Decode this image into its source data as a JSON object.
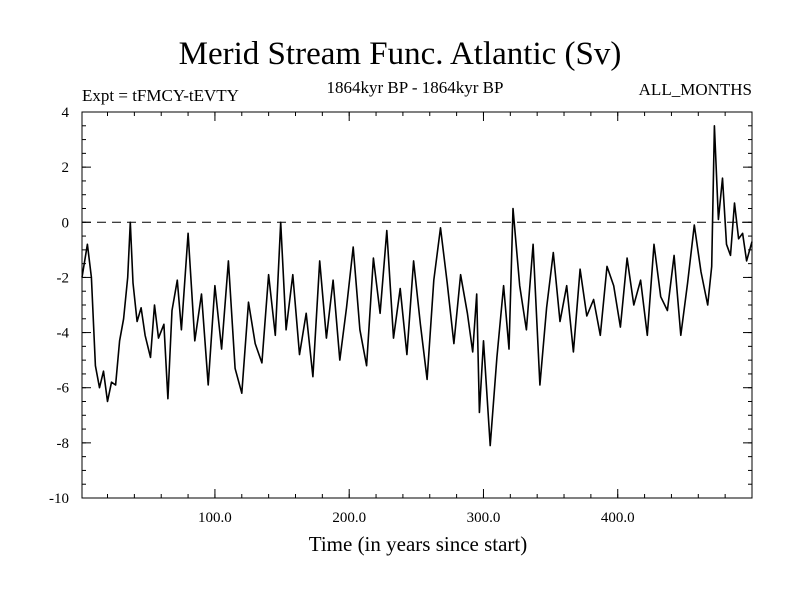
{
  "chart_data": {
    "type": "line",
    "title": "Merid Stream Func. Atlantic (Sv)",
    "subtitle_left": "Expt = tFMCY-tEVTY",
    "subtitle_center": "1864kyr BP - 1864kyr BP",
    "subtitle_right": "ALL_MONTHS",
    "xlabel": "Time (in years since start)",
    "ylabel": "",
    "xlim": [
      1,
      500
    ],
    "ylim": [
      -10,
      4
    ],
    "x_ticks": [
      100,
      200,
      300,
      400
    ],
    "x_tick_labels": [
      "100.0",
      "200.0",
      "300.0",
      "400.0"
    ],
    "y_ticks": [
      -10,
      -8,
      -6,
      -4,
      -2,
      0,
      2,
      4
    ],
    "y_tick_labels": [
      "-10",
      "-8",
      "-6",
      "-4",
      "-2",
      "0",
      "2",
      "4"
    ],
    "reference_line": {
      "y": 0,
      "style": "dashed"
    },
    "series": [
      {
        "name": "Merid Stream Func. Atlantic",
        "x": [
          1,
          5,
          8,
          11,
          14,
          17,
          20,
          23,
          26,
          29,
          32,
          35,
          37,
          39,
          42,
          45,
          48,
          52,
          55,
          58,
          62,
          65,
          68,
          72,
          75,
          80,
          85,
          90,
          95,
          100,
          105,
          110,
          115,
          120,
          125,
          130,
          135,
          140,
          145,
          149,
          153,
          158,
          163,
          168,
          173,
          178,
          183,
          188,
          193,
          198,
          203,
          208,
          213,
          218,
          223,
          228,
          233,
          238,
          243,
          248,
          253,
          258,
          263,
          268,
          273,
          278,
          283,
          288,
          292,
          295,
          297,
          300,
          305,
          310,
          315,
          319,
          322,
          327,
          332,
          337,
          342,
          347,
          352,
          357,
          362,
          367,
          372,
          377,
          382,
          387,
          392,
          397,
          402,
          407,
          412,
          417,
          422,
          427,
          432,
          437,
          442,
          447,
          452,
          457,
          462,
          467,
          470,
          472,
          475,
          478,
          481,
          484,
          487,
          490,
          493,
          496,
          500
        ],
        "values": [
          -2.0,
          -0.8,
          -2.0,
          -5.2,
          -6.0,
          -5.4,
          -6.5,
          -5.8,
          -5.9,
          -4.3,
          -3.5,
          -2.0,
          0.0,
          -2.2,
          -3.6,
          -3.1,
          -4.1,
          -4.9,
          -3.0,
          -4.2,
          -3.7,
          -6.4,
          -3.2,
          -2.1,
          -3.9,
          -0.4,
          -4.3,
          -2.6,
          -5.9,
          -2.3,
          -4.6,
          -1.4,
          -5.3,
          -6.2,
          -2.9,
          -4.4,
          -5.1,
          -1.9,
          -4.1,
          0.0,
          -3.9,
          -1.9,
          -4.8,
          -3.3,
          -5.6,
          -1.4,
          -4.2,
          -2.1,
          -5.0,
          -3.1,
          -0.9,
          -3.9,
          -5.2,
          -1.3,
          -3.3,
          -0.3,
          -4.2,
          -2.4,
          -4.8,
          -1.4,
          -3.7,
          -5.7,
          -2.1,
          -0.2,
          -2.2,
          -4.4,
          -1.9,
          -3.3,
          -4.7,
          -2.6,
          -6.9,
          -4.3,
          -8.1,
          -4.9,
          -2.3,
          -4.6,
          0.5,
          -2.3,
          -3.9,
          -0.8,
          -5.9,
          -3.1,
          -1.1,
          -3.6,
          -2.3,
          -4.7,
          -1.7,
          -3.4,
          -2.8,
          -4.1,
          -1.6,
          -2.3,
          -3.8,
          -1.3,
          -3.0,
          -2.1,
          -4.1,
          -0.8,
          -2.7,
          -3.2,
          -1.2,
          -4.1,
          -2.2,
          -0.1,
          -1.8,
          -3.0,
          -1.6,
          3.5,
          0.1,
          1.6,
          -0.8,
          -1.2,
          0.7,
          -0.6,
          -0.4,
          -1.4,
          -0.7
        ]
      }
    ]
  }
}
